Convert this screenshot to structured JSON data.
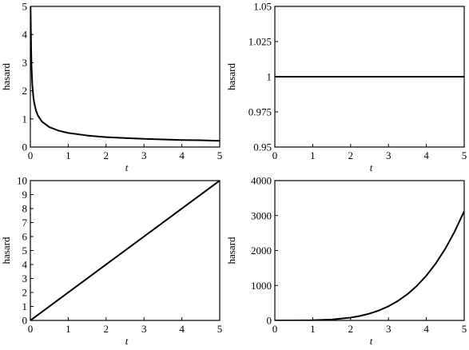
{
  "chart_data": [
    {
      "type": "line",
      "title": "",
      "xlabel": "t",
      "ylabel": "hasard",
      "xlim": [
        0,
        5
      ],
      "ylim": [
        0,
        5
      ],
      "xticks": [
        "0",
        "1",
        "2",
        "3",
        "4",
        "5"
      ],
      "yticks": [
        "0",
        "1",
        "2",
        "3",
        "4",
        "5"
      ],
      "grid": false,
      "series": [
        {
          "x": [
            0.02,
            0.03,
            0.05,
            0.08,
            0.1,
            0.15,
            0.2,
            0.3,
            0.5,
            0.75,
            1,
            1.5,
            2,
            2.5,
            3,
            3.5,
            4,
            4.5,
            5
          ],
          "y": [
            3.54,
            2.89,
            2.24,
            1.77,
            1.58,
            1.29,
            1.12,
            0.91,
            0.71,
            0.58,
            0.5,
            0.41,
            0.35,
            0.32,
            0.29,
            0.27,
            0.25,
            0.24,
            0.22
          ]
        }
      ]
    },
    {
      "type": "line",
      "title": "",
      "xlabel": "t",
      "ylabel": "hasard",
      "xlim": [
        0,
        5
      ],
      "ylim": [
        0.95,
        1.05
      ],
      "xticks": [
        "0",
        "1",
        "2",
        "3",
        "4",
        "5"
      ],
      "yticks": [
        "0.95",
        "0.975",
        "1",
        "1.025",
        "1.05"
      ],
      "grid": false,
      "series": [
        {
          "x": [
            0,
            5
          ],
          "y": [
            1,
            1
          ]
        }
      ]
    },
    {
      "type": "line",
      "title": "",
      "xlabel": "t",
      "ylabel": "hasard",
      "xlim": [
        0,
        5
      ],
      "ylim": [
        0,
        10
      ],
      "xticks": [
        "0",
        "1",
        "2",
        "3",
        "4",
        "5"
      ],
      "yticks": [
        "0",
        "1",
        "2",
        "3",
        "4",
        "5",
        "6",
        "7",
        "8",
        "9",
        "10"
      ],
      "grid": false,
      "series": [
        {
          "x": [
            0,
            5
          ],
          "y": [
            0,
            10
          ]
        }
      ]
    },
    {
      "type": "line",
      "title": "",
      "xlabel": "t",
      "ylabel": "hasard",
      "xlim": [
        0,
        5
      ],
      "ylim": [
        0,
        4000
      ],
      "xticks": [
        "0",
        "1",
        "2",
        "3",
        "4",
        "5"
      ],
      "yticks": [
        "0",
        "1000",
        "2000",
        "3000",
        "4000"
      ],
      "grid": false,
      "series": [
        {
          "x": [
            0,
            0.5,
            1,
            1.5,
            2,
            2.25,
            2.5,
            2.75,
            3,
            3.25,
            3.5,
            3.75,
            4,
            4.25,
            4.5,
            4.75,
            5
          ],
          "y": [
            0,
            0,
            5,
            25,
            80,
            128,
            195,
            286,
            405,
            558,
            750,
            989,
            1280,
            1631,
            2050,
            2546,
            3125
          ]
        }
      ]
    }
  ]
}
